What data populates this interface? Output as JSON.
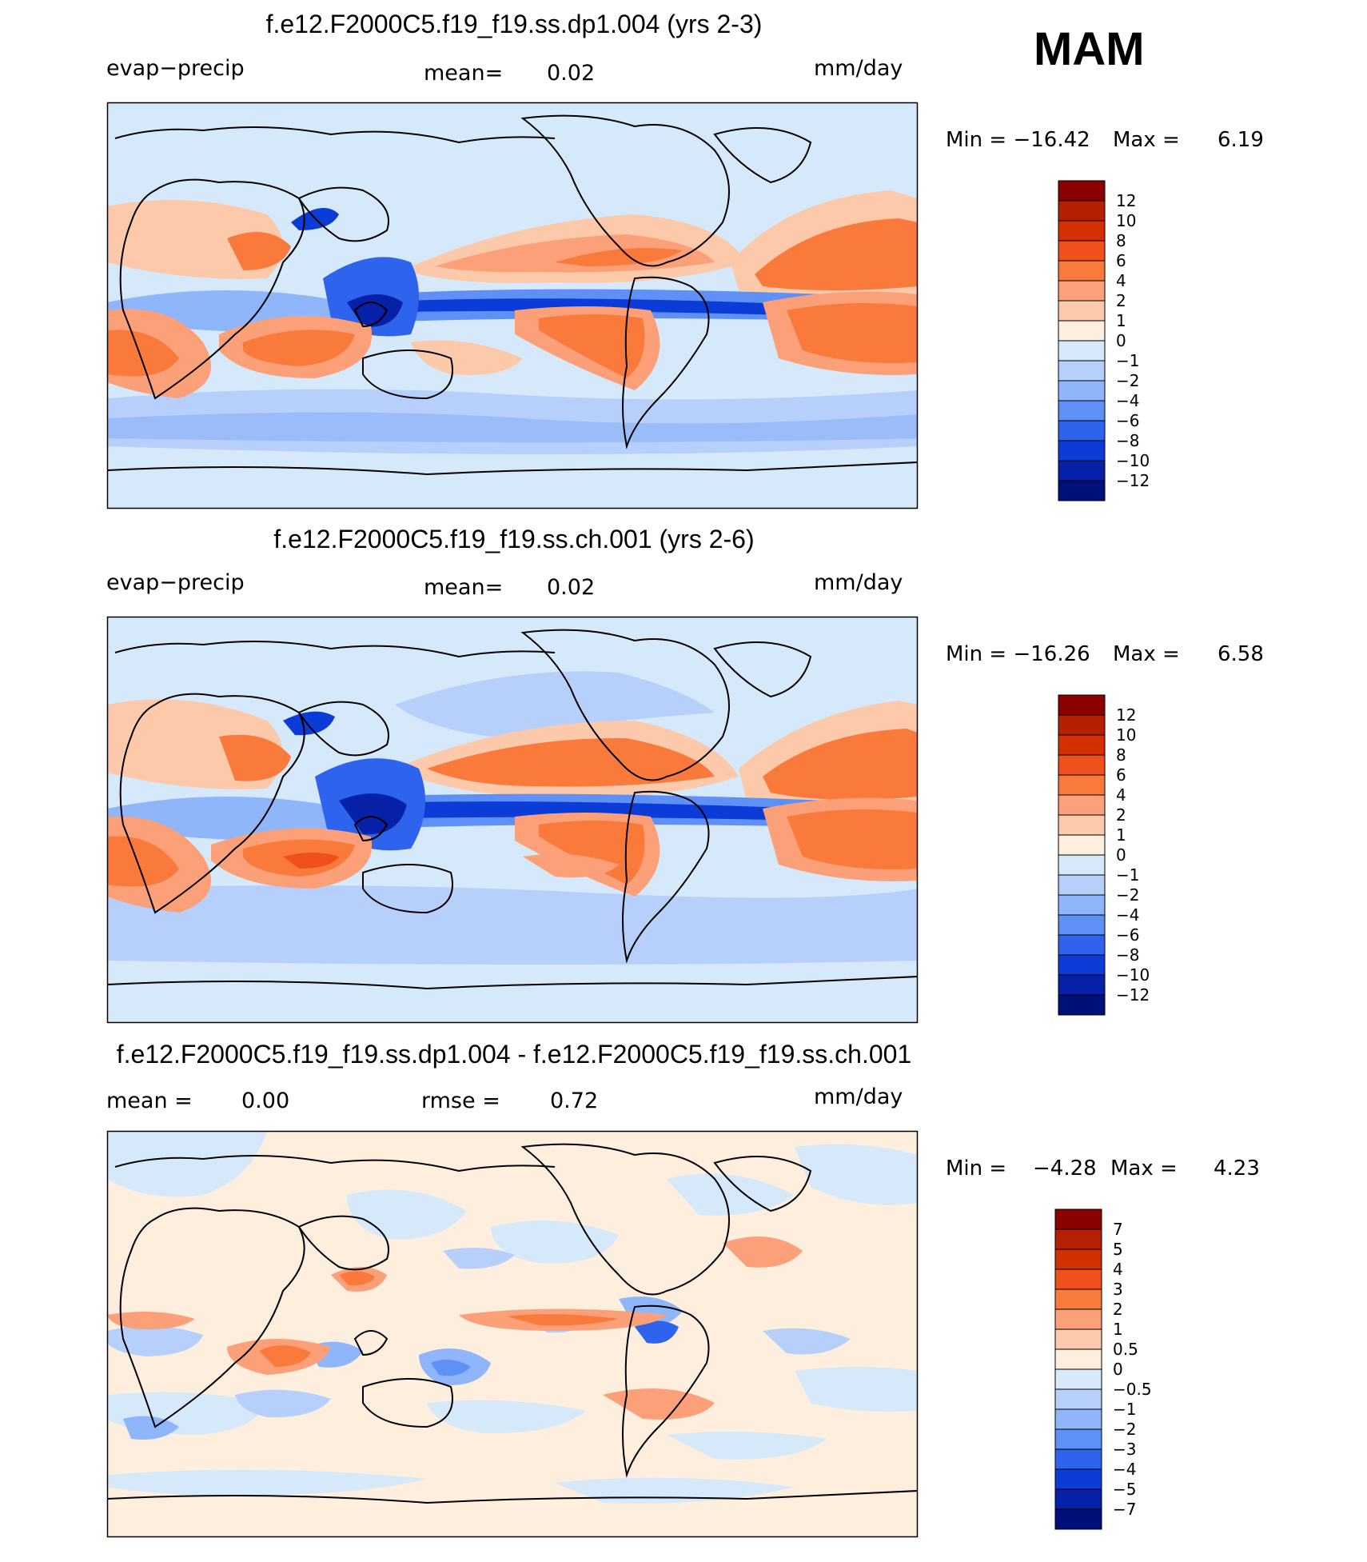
{
  "season": "MAM",
  "chart_data": [
    {
      "type": "heatmap",
      "title": "f.e12.F2000C5.f19_f19.ss.dp1.004 (yrs 2-3)",
      "variable": "evap−precip",
      "mean_label": "mean=",
      "mean_value": "0.02",
      "units": "mm/day",
      "min_label": "Min  =  −16.42",
      "max_label": "Max  =",
      "max_value": "6.19",
      "levels": [
        "12",
        "10",
        "8",
        "6",
        "4",
        "2",
        "1",
        "0",
        "−1",
        "−2",
        "−4",
        "−6",
        "−8",
        "−10",
        "−12"
      ],
      "colors": [
        "#8b0000",
        "#b42000",
        "#d33000",
        "#f0501a",
        "#fa7a3c",
        "#fca07a",
        "#fdc9ab",
        "#feeedd",
        "#d6e9fb",
        "#b6d0fb",
        "#8fb5fa",
        "#5f90f5",
        "#2e63ee",
        "#0b3cd8",
        "#0620a8",
        "#00107a"
      ]
    },
    {
      "type": "heatmap",
      "title": "f.e12.F2000C5.f19_f19.ss.ch.001 (yrs 2-6)",
      "variable": "evap−precip",
      "mean_label": "mean=",
      "mean_value": "0.02",
      "units": "mm/day",
      "min_label": "Min  =  −16.26",
      "max_label": "Max  =",
      "max_value": "6.58",
      "levels": [
        "12",
        "10",
        "8",
        "6",
        "4",
        "2",
        "1",
        "0",
        "−1",
        "−2",
        "−4",
        "−6",
        "−8",
        "−10",
        "−12"
      ],
      "colors": [
        "#8b0000",
        "#b42000",
        "#d33000",
        "#f0501a",
        "#fa7a3c",
        "#fca07a",
        "#fdc9ab",
        "#feeedd",
        "#d6e9fb",
        "#b6d0fb",
        "#8fb5fa",
        "#5f90f5",
        "#2e63ee",
        "#0b3cd8",
        "#0620a8",
        "#00107a"
      ]
    },
    {
      "type": "heatmap",
      "title": "f.e12.F2000C5.f19_f19.ss.dp1.004 - f.e12.F2000C5.f19_f19.ss.ch.001",
      "mean_label": "mean  =",
      "mean_value": "0.00",
      "rmse_label": "rmse  =",
      "rmse_value": "0.72",
      "units": "mm/day",
      "min_label": "Min  =",
      "min_value": "−4.28",
      "max_label": "Max  =",
      "max_value": "4.23",
      "levels": [
        "7",
        "5",
        "4",
        "3",
        "2",
        "1",
        "0.5",
        "0",
        "−0.5",
        "−1",
        "−2",
        "−3",
        "−4",
        "−5",
        "−7"
      ],
      "colors": [
        "#8b0000",
        "#b42000",
        "#d33000",
        "#f0501a",
        "#fa7a3c",
        "#fca07a",
        "#fdc9ab",
        "#feeedd",
        "#d6e9fb",
        "#b6d0fb",
        "#8fb5fa",
        "#5f90f5",
        "#2e63ee",
        "#0b3cd8",
        "#0620a8",
        "#00107a"
      ]
    }
  ]
}
